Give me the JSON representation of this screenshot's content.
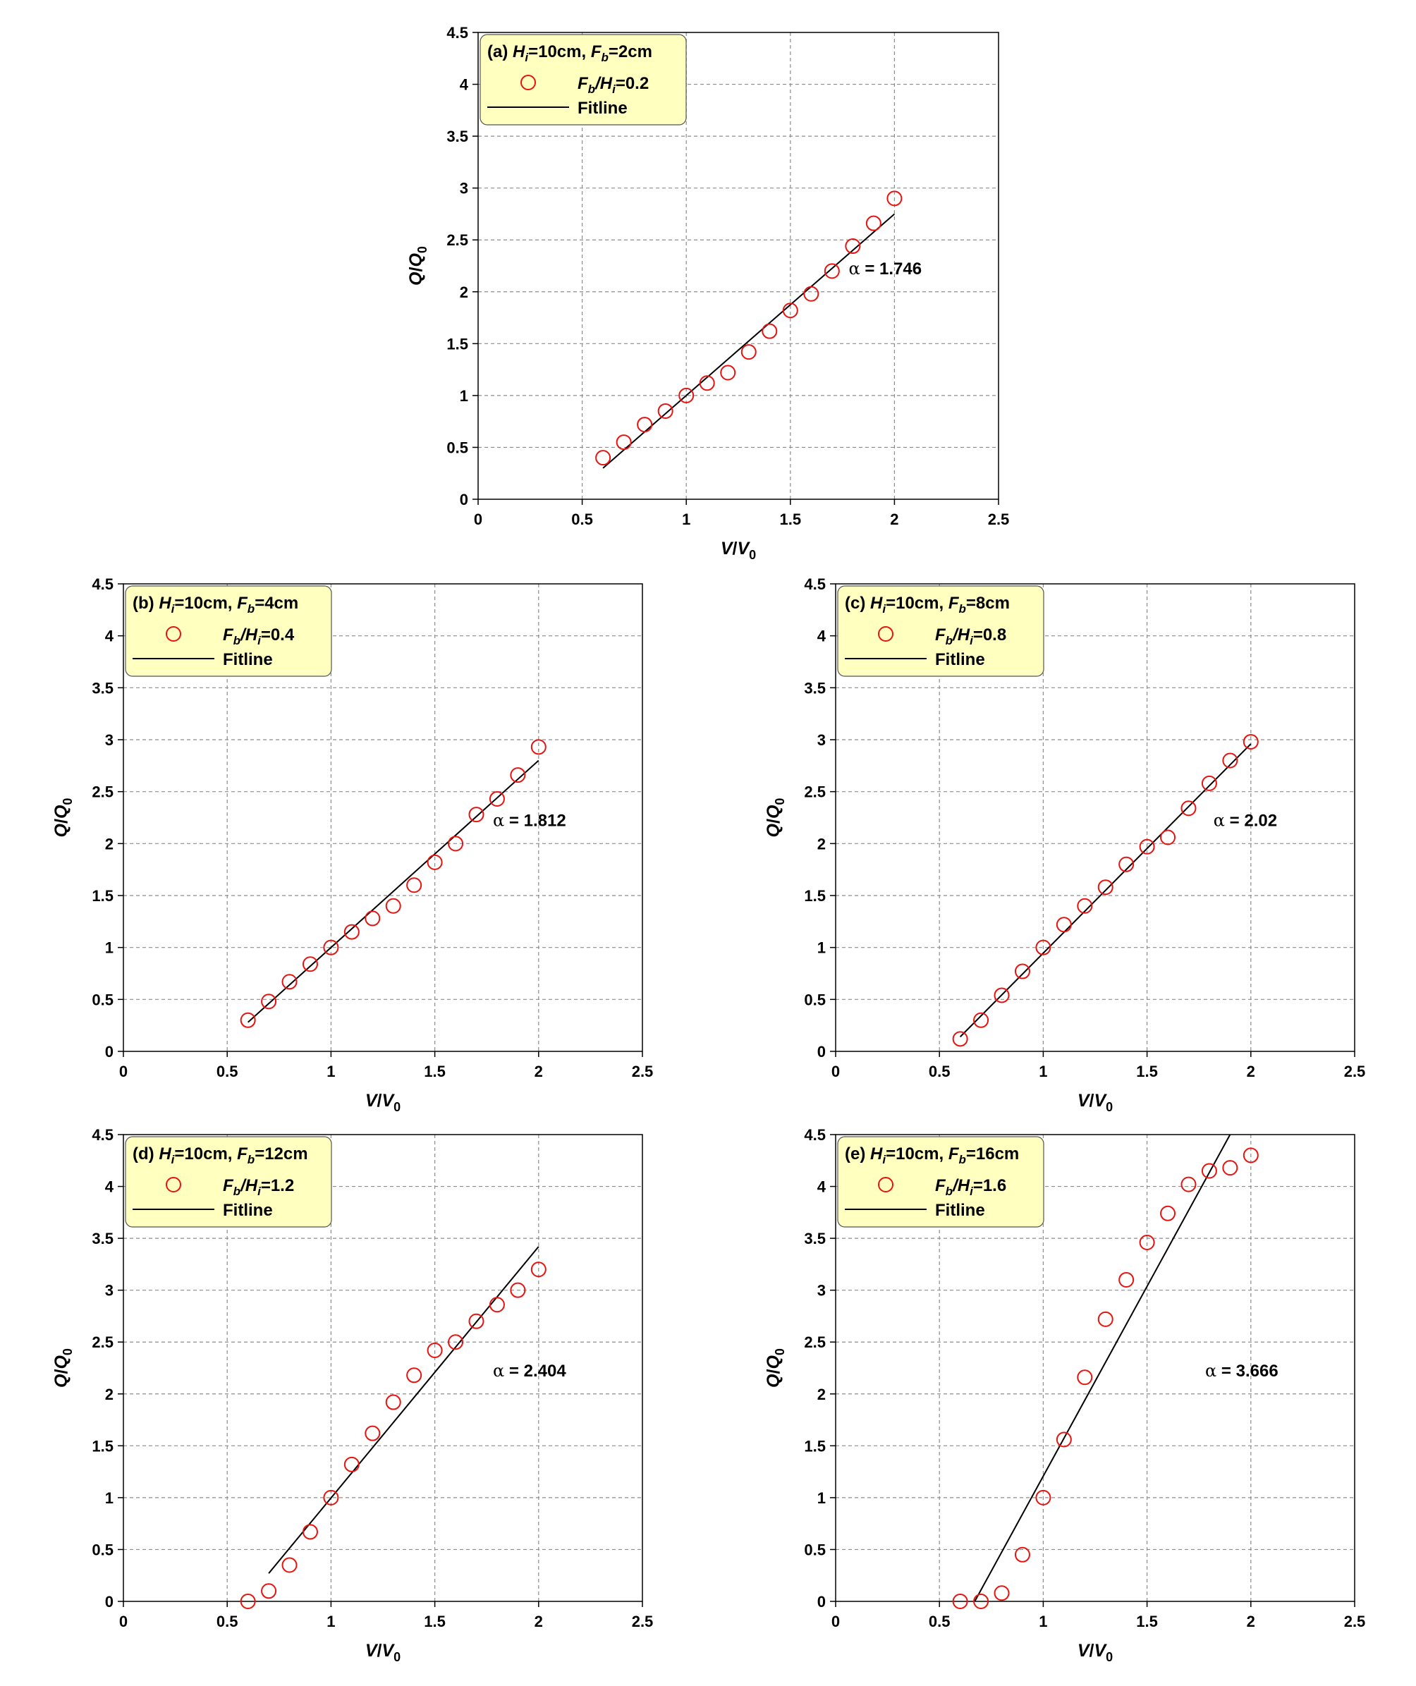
{
  "chart_data": [
    {
      "type": "scatter",
      "panel": "a",
      "legend_title": {
        "prefix": "(a) ",
        "h_name": "H",
        "h_sub": "i",
        "h_val": "=10cm, ",
        "f_name": "F",
        "f_sub": "b",
        "f_val": "=2cm"
      },
      "series_label": {
        "f_name": "F",
        "f_sub": "b",
        "slash": "/",
        "h_name": "H",
        "h_sub": "i",
        "value": "=0.2"
      },
      "fit_label": "Fitline",
      "alpha_symbol": "α",
      "alpha_text": " = 1.746",
      "alpha_position": [
        1.78,
        2.17
      ],
      "xlabel": {
        "base": "V",
        "slash": "/",
        "den": "V",
        "sub": "0"
      },
      "ylabel": {
        "base": "Q",
        "slash": "/",
        "den": "Q",
        "sub": "0"
      },
      "xlim": [
        0,
        2.5
      ],
      "ylim": [
        0,
        4.5
      ],
      "xticks": [
        "0",
        "0.5",
        "1",
        "1.5",
        "2",
        "2.5"
      ],
      "yticks": [
        "0",
        "0.5",
        "1",
        "1.5",
        "2",
        "2.5",
        "3",
        "3.5",
        "4",
        "4.5"
      ],
      "x": [
        0.6,
        0.7,
        0.8,
        0.9,
        1.0,
        1.1,
        1.2,
        1.3,
        1.4,
        1.5,
        1.6,
        1.7,
        1.8,
        1.9,
        2.0
      ],
      "y": [
        0.4,
        0.55,
        0.72,
        0.85,
        1.0,
        1.12,
        1.22,
        1.42,
        1.62,
        1.82,
        1.98,
        2.2,
        2.44,
        2.66,
        2.9
      ],
      "fit": [
        [
          0.6,
          0.3
        ],
        [
          2.0,
          2.75
        ]
      ],
      "grid": true,
      "legend_position": "top-left"
    },
    {
      "type": "scatter",
      "panel": "b",
      "legend_title": {
        "prefix": "(b) ",
        "h_name": "H",
        "h_sub": "i",
        "h_val": "=10cm, ",
        "f_name": "F",
        "f_sub": "b",
        "f_val": "=4cm"
      },
      "series_label": {
        "f_name": "F",
        "f_sub": "b",
        "slash": "/",
        "h_name": "H",
        "h_sub": "i",
        "value": "=0.4"
      },
      "fit_label": "Fitline",
      "alpha_symbol": "α",
      "alpha_text": " = 1.812",
      "alpha_position": [
        1.78,
        2.17
      ],
      "xlabel": {
        "base": "V",
        "slash": "/",
        "den": "V",
        "sub": "0"
      },
      "ylabel": {
        "base": "Q",
        "slash": "/",
        "den": "Q",
        "sub": "0"
      },
      "xlim": [
        0,
        2.5
      ],
      "ylim": [
        0,
        4.5
      ],
      "xticks": [
        "0",
        "0.5",
        "1",
        "1.5",
        "2",
        "2.5"
      ],
      "yticks": [
        "0",
        "0.5",
        "1",
        "1.5",
        "2",
        "2.5",
        "3",
        "3.5",
        "4",
        "4.5"
      ],
      "x": [
        0.6,
        0.7,
        0.8,
        0.9,
        1.0,
        1.1,
        1.2,
        1.3,
        1.4,
        1.5,
        1.6,
        1.7,
        1.8,
        1.9,
        2.0
      ],
      "y": [
        0.3,
        0.48,
        0.67,
        0.84,
        1.0,
        1.15,
        1.28,
        1.4,
        1.6,
        1.82,
        2.0,
        2.28,
        2.43,
        2.66,
        2.93
      ],
      "fit": [
        [
          0.6,
          0.28
        ],
        [
          2.0,
          2.8
        ]
      ],
      "grid": true,
      "legend_position": "top-left"
    },
    {
      "type": "scatter",
      "panel": "c",
      "legend_title": {
        "prefix": "(c) ",
        "h_name": "H",
        "h_sub": "i",
        "h_val": "=10cm, ",
        "f_name": "F",
        "f_sub": "b",
        "f_val": "=8cm"
      },
      "series_label": {
        "f_name": "F",
        "f_sub": "b",
        "slash": "/",
        "h_name": "H",
        "h_sub": "i",
        "value": "=0.8"
      },
      "fit_label": "Fitline",
      "alpha_symbol": "α",
      "alpha_text": " = 2.02",
      "alpha_position": [
        1.82,
        2.17
      ],
      "xlabel": {
        "base": "V",
        "slash": "/",
        "den": "V",
        "sub": "0"
      },
      "ylabel": {
        "base": "Q",
        "slash": "/",
        "den": "Q",
        "sub": "0"
      },
      "xlim": [
        0,
        2.5
      ],
      "ylim": [
        0,
        4.5
      ],
      "xticks": [
        "0",
        "0.5",
        "1",
        "1.5",
        "2",
        "2.5"
      ],
      "yticks": [
        "0",
        "0.5",
        "1",
        "1.5",
        "2",
        "2.5",
        "3",
        "3.5",
        "4",
        "4.5"
      ],
      "x": [
        0.6,
        0.7,
        0.8,
        0.9,
        1.0,
        1.1,
        1.2,
        1.3,
        1.4,
        1.5,
        1.6,
        1.7,
        1.8,
        1.9,
        2.0
      ],
      "y": [
        0.12,
        0.3,
        0.54,
        0.77,
        1.0,
        1.22,
        1.4,
        1.58,
        1.8,
        1.97,
        2.06,
        2.34,
        2.58,
        2.8,
        2.98
      ],
      "fit": [
        [
          0.6,
          0.14
        ],
        [
          2.0,
          2.96
        ]
      ],
      "grid": true,
      "legend_position": "top-left"
    },
    {
      "type": "scatter",
      "panel": "d",
      "legend_title": {
        "prefix": "(d) ",
        "h_name": "H",
        "h_sub": "i",
        "h_val": "=10cm, ",
        "f_name": "F",
        "f_sub": "b",
        "f_val": "=12cm"
      },
      "series_label": {
        "f_name": "F",
        "f_sub": "b",
        "slash": "/",
        "h_name": "H",
        "h_sub": "i",
        "value": "=1.2"
      },
      "fit_label": "Fitline",
      "alpha_symbol": "α",
      "alpha_text": " = 2.404",
      "alpha_position": [
        1.78,
        2.17
      ],
      "xlabel": {
        "base": "V",
        "slash": "/",
        "den": "V",
        "sub": "0"
      },
      "ylabel": {
        "base": "Q",
        "slash": "/",
        "den": "Q",
        "sub": "0"
      },
      "xlim": [
        0,
        2.5
      ],
      "ylim": [
        0,
        4.5
      ],
      "xticks": [
        "0",
        "0.5",
        "1",
        "1.5",
        "2",
        "2.5"
      ],
      "yticks": [
        "0",
        "0.5",
        "1",
        "1.5",
        "2",
        "2.5",
        "3",
        "3.5",
        "4",
        "4.5"
      ],
      "x": [
        0.6,
        0.7,
        0.8,
        0.9,
        1.0,
        1.1,
        1.2,
        1.3,
        1.4,
        1.5,
        1.6,
        1.7,
        1.8,
        1.9,
        2.0
      ],
      "y": [
        0.0,
        0.1,
        0.35,
        0.67,
        1.0,
        1.32,
        1.62,
        1.92,
        2.18,
        2.42,
        2.5,
        2.7,
        2.86,
        3.0,
        3.2
      ],
      "fit": [
        [
          0.7,
          0.27
        ],
        [
          2.0,
          3.42
        ]
      ],
      "grid": true,
      "legend_position": "top-left"
    },
    {
      "type": "scatter",
      "panel": "e",
      "legend_title": {
        "prefix": "(e) ",
        "h_name": "H",
        "h_sub": "i",
        "h_val": "=10cm, ",
        "f_name": "F",
        "f_sub": "b",
        "f_val": "=16cm"
      },
      "series_label": {
        "f_name": "F",
        "f_sub": "b",
        "slash": "/",
        "h_name": "H",
        "h_sub": "i",
        "value": "=1.6"
      },
      "fit_label": "Fitline",
      "alpha_symbol": "α",
      "alpha_text": " = 3.666",
      "alpha_position": [
        1.78,
        2.17
      ],
      "xlabel": {
        "base": "V",
        "slash": "/",
        "den": "V",
        "sub": "0"
      },
      "ylabel": {
        "base": "Q",
        "slash": "/",
        "den": "Q",
        "sub": "0"
      },
      "xlim": [
        0,
        2.5
      ],
      "ylim": [
        0,
        4.5
      ],
      "xticks": [
        "0",
        "0.5",
        "1",
        "1.5",
        "2",
        "2.5"
      ],
      "yticks": [
        "0",
        "0.5",
        "1",
        "1.5",
        "2",
        "2.5",
        "3",
        "3.5",
        "4",
        "4.5"
      ],
      "x": [
        0.6,
        0.7,
        0.8,
        0.9,
        1.0,
        1.1,
        1.2,
        1.3,
        1.4,
        1.5,
        1.6,
        1.7,
        1.8,
        1.9,
        2.0
      ],
      "y": [
        0.0,
        0.0,
        0.08,
        0.45,
        1.0,
        1.56,
        2.16,
        2.72,
        3.1,
        3.46,
        3.74,
        4.02,
        4.15,
        4.18,
        4.3
      ],
      "fit": [
        [
          0.67,
          0.0
        ],
        [
          1.9,
          4.5
        ]
      ],
      "grid": true,
      "legend_position": "top-left"
    }
  ],
  "colors": {
    "marker": "#e8130f",
    "fit": "#000000",
    "legend_bg": "#ffffc0",
    "grid": "#8c8c8c"
  }
}
